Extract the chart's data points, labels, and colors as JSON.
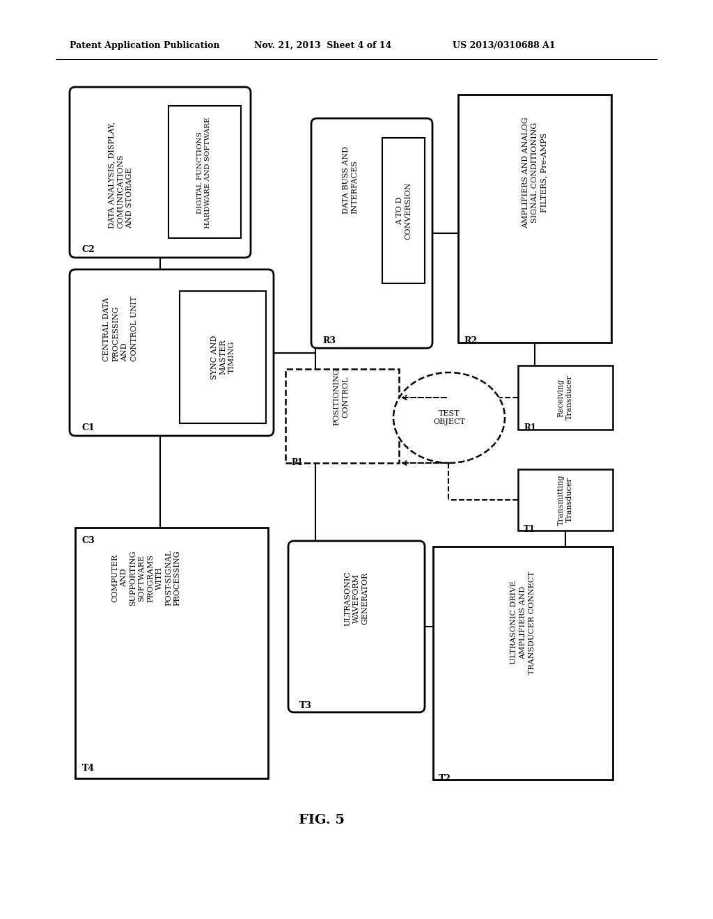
{
  "bg": "#ffffff",
  "header_left": "Patent Application Publication",
  "header_mid": "Nov. 21, 2013  Sheet 4 of 14",
  "header_right": "US 2013/0310688 A1",
  "fig_label": "FIG. 5",
  "figsize": [
    10.24,
    13.2
  ],
  "dpi": 100
}
